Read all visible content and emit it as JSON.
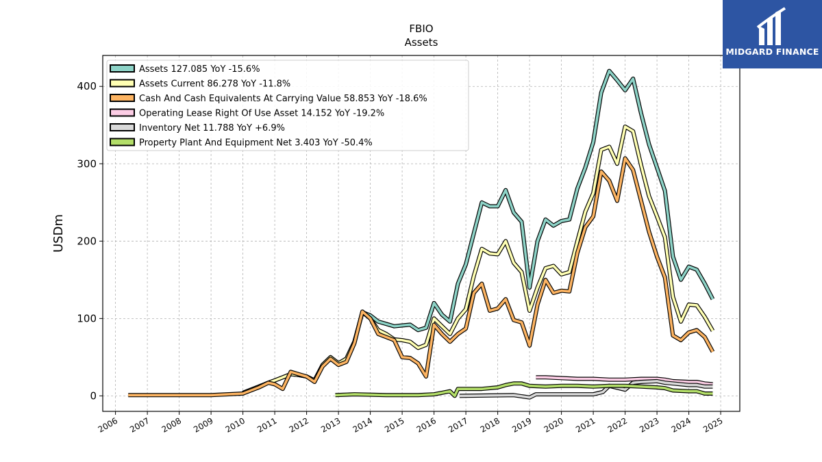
{
  "chart_data": {
    "type": "line",
    "title": "FBIO",
    "subtitle": "Assets",
    "ylabel": "USDm",
    "xlabel": "",
    "ylim": [
      -20,
      440
    ],
    "xlim": [
      2005.6,
      2025.6
    ],
    "yticks": [
      0,
      100,
      200,
      300,
      400
    ],
    "xticks": [
      "2006",
      "2007",
      "2008",
      "2009",
      "2010",
      "2011",
      "2012",
      "2013",
      "2014",
      "2015",
      "2016",
      "2017",
      "2018",
      "2019",
      "2020",
      "2021",
      "2022",
      "2023",
      "2024",
      "2025"
    ],
    "grid": true,
    "legend_position": "top-left",
    "series": [
      {
        "name": "Assets  127.085 YoY -15.6%",
        "color": "#8dd3c7",
        "points": [
          [
            2010.0,
            4
          ],
          [
            2010.5,
            12
          ],
          [
            2010.8,
            17
          ],
          [
            2011.0,
            20
          ],
          [
            2011.25,
            24
          ],
          [
            2011.5,
            28
          ],
          [
            2011.75,
            27
          ],
          [
            2012.0,
            25
          ],
          [
            2012.25,
            20
          ],
          [
            2012.5,
            40
          ],
          [
            2012.75,
            50
          ],
          [
            2013.0,
            42
          ],
          [
            2013.25,
            48
          ],
          [
            2013.5,
            70
          ],
          [
            2013.75,
            108
          ],
          [
            2014.0,
            104
          ],
          [
            2014.25,
            96
          ],
          [
            2014.5,
            93
          ],
          [
            2014.75,
            90
          ],
          [
            2015.0,
            91
          ],
          [
            2015.25,
            92
          ],
          [
            2015.5,
            85
          ],
          [
            2015.75,
            88
          ],
          [
            2016.0,
            120
          ],
          [
            2016.25,
            105
          ],
          [
            2016.5,
            96
          ],
          [
            2016.75,
            145
          ],
          [
            2017.0,
            170
          ],
          [
            2017.25,
            210
          ],
          [
            2017.5,
            250
          ],
          [
            2017.75,
            245
          ],
          [
            2018.0,
            245
          ],
          [
            2018.25,
            266
          ],
          [
            2018.5,
            237
          ],
          [
            2018.75,
            225
          ],
          [
            2019.0,
            140
          ],
          [
            2019.25,
            200
          ],
          [
            2019.5,
            228
          ],
          [
            2019.75,
            220
          ],
          [
            2020.0,
            226
          ],
          [
            2020.25,
            228
          ],
          [
            2020.5,
            268
          ],
          [
            2020.75,
            295
          ],
          [
            2021.0,
            328
          ],
          [
            2021.25,
            392
          ],
          [
            2021.5,
            420
          ],
          [
            2021.75,
            408
          ],
          [
            2022.0,
            395
          ],
          [
            2022.25,
            410
          ],
          [
            2022.5,
            365
          ],
          [
            2022.75,
            325
          ],
          [
            2023.0,
            295
          ],
          [
            2023.25,
            265
          ],
          [
            2023.5,
            180
          ],
          [
            2023.75,
            150
          ],
          [
            2024.0,
            167
          ],
          [
            2024.25,
            163
          ],
          [
            2024.5,
            145
          ],
          [
            2024.75,
            125
          ]
        ]
      },
      {
        "name": "Assets Current  86.278 YoY -11.8%",
        "color": "#ffffb3",
        "points": [
          [
            2010.0,
            4
          ],
          [
            2010.5,
            12
          ],
          [
            2010.8,
            17
          ],
          [
            2011.0,
            20
          ],
          [
            2011.25,
            24
          ],
          [
            2011.5,
            28
          ],
          [
            2011.75,
            27
          ],
          [
            2012.0,
            25
          ],
          [
            2012.25,
            20
          ],
          [
            2012.5,
            40
          ],
          [
            2012.75,
            50
          ],
          [
            2013.0,
            42
          ],
          [
            2013.25,
            48
          ],
          [
            2013.5,
            70
          ],
          [
            2013.75,
            108
          ],
          [
            2014.0,
            100
          ],
          [
            2014.25,
            85
          ],
          [
            2014.5,
            80
          ],
          [
            2014.75,
            73
          ],
          [
            2015.0,
            72
          ],
          [
            2015.25,
            70
          ],
          [
            2015.5,
            62
          ],
          [
            2015.75,
            66
          ],
          [
            2016.0,
            100
          ],
          [
            2016.25,
            90
          ],
          [
            2016.5,
            80
          ],
          [
            2016.75,
            100
          ],
          [
            2017.0,
            112
          ],
          [
            2017.25,
            155
          ],
          [
            2017.5,
            190
          ],
          [
            2017.75,
            184
          ],
          [
            2018.0,
            183
          ],
          [
            2018.25,
            200
          ],
          [
            2018.5,
            172
          ],
          [
            2018.75,
            160
          ],
          [
            2019.0,
            110
          ],
          [
            2019.25,
            140
          ],
          [
            2019.5,
            165
          ],
          [
            2019.75,
            168
          ],
          [
            2020.0,
            157
          ],
          [
            2020.25,
            160
          ],
          [
            2020.5,
            200
          ],
          [
            2020.75,
            238
          ],
          [
            2021.0,
            262
          ],
          [
            2021.25,
            318
          ],
          [
            2021.5,
            322
          ],
          [
            2021.75,
            300
          ],
          [
            2022.0,
            348
          ],
          [
            2022.25,
            342
          ],
          [
            2022.5,
            298
          ],
          [
            2022.75,
            258
          ],
          [
            2023.0,
            232
          ],
          [
            2023.25,
            205
          ],
          [
            2023.5,
            128
          ],
          [
            2023.75,
            96
          ],
          [
            2024.0,
            118
          ],
          [
            2024.25,
            117
          ],
          [
            2024.5,
            102
          ],
          [
            2024.75,
            84
          ]
        ]
      },
      {
        "name": "Cash And Cash Equivalents At Carrying Value  58.853 YoY -18.6%",
        "color": "#fdb462",
        "points": [
          [
            2006.4,
            1
          ],
          [
            2009.0,
            1
          ],
          [
            2010.0,
            3
          ],
          [
            2010.5,
            11
          ],
          [
            2010.8,
            17
          ],
          [
            2011.0,
            15
          ],
          [
            2011.25,
            9
          ],
          [
            2011.5,
            31
          ],
          [
            2011.75,
            28
          ],
          [
            2012.0,
            25
          ],
          [
            2012.25,
            18
          ],
          [
            2012.5,
            38
          ],
          [
            2012.75,
            48
          ],
          [
            2013.0,
            40
          ],
          [
            2013.25,
            44
          ],
          [
            2013.5,
            68
          ],
          [
            2013.75,
            109
          ],
          [
            2014.0,
            100
          ],
          [
            2014.25,
            80
          ],
          [
            2014.5,
            76
          ],
          [
            2014.75,
            72
          ],
          [
            2015.0,
            50
          ],
          [
            2015.25,
            49
          ],
          [
            2015.5,
            42
          ],
          [
            2015.75,
            25
          ],
          [
            2016.0,
            92
          ],
          [
            2016.25,
            80
          ],
          [
            2016.5,
            70
          ],
          [
            2016.75,
            80
          ],
          [
            2017.0,
            87
          ],
          [
            2017.25,
            133
          ],
          [
            2017.5,
            145
          ],
          [
            2017.75,
            110
          ],
          [
            2018.0,
            113
          ],
          [
            2018.25,
            125
          ],
          [
            2018.5,
            98
          ],
          [
            2018.75,
            95
          ],
          [
            2019.0,
            65
          ],
          [
            2019.25,
            118
          ],
          [
            2019.5,
            150
          ],
          [
            2019.75,
            133
          ],
          [
            2020.0,
            136
          ],
          [
            2020.25,
            135
          ],
          [
            2020.5,
            185
          ],
          [
            2020.75,
            218
          ],
          [
            2021.0,
            232
          ],
          [
            2021.25,
            290
          ],
          [
            2021.5,
            278
          ],
          [
            2021.75,
            252
          ],
          [
            2022.0,
            307
          ],
          [
            2022.25,
            292
          ],
          [
            2022.5,
            252
          ],
          [
            2022.75,
            212
          ],
          [
            2023.0,
            180
          ],
          [
            2023.25,
            153
          ],
          [
            2023.5,
            78
          ],
          [
            2023.75,
            72
          ],
          [
            2024.0,
            82
          ],
          [
            2024.25,
            85
          ],
          [
            2024.5,
            76
          ],
          [
            2024.75,
            57
          ]
        ]
      },
      {
        "name": "Operating Lease Right Of Use Asset  14.152 YoY -19.2%",
        "color": "#fccde5",
        "points": [
          [
            2019.2,
            24
          ],
          [
            2019.5,
            24
          ],
          [
            2020.0,
            23
          ],
          [
            2020.5,
            22
          ],
          [
            2021.0,
            22
          ],
          [
            2021.5,
            21
          ],
          [
            2022.0,
            21
          ],
          [
            2022.5,
            22
          ],
          [
            2022.75,
            22
          ],
          [
            2023.0,
            22
          ],
          [
            2023.25,
            21
          ],
          [
            2023.5,
            19
          ],
          [
            2024.0,
            18
          ],
          [
            2024.25,
            18
          ],
          [
            2024.5,
            16
          ],
          [
            2024.75,
            15
          ]
        ]
      },
      {
        "name": "Inventory Net  11.788 YoY +6.9%",
        "color": "#d9d9d9",
        "points": [
          [
            2016.8,
            0
          ],
          [
            2018.5,
            1
          ],
          [
            2019.0,
            -2
          ],
          [
            2019.2,
            2
          ],
          [
            2020.0,
            2
          ],
          [
            2021.0,
            2
          ],
          [
            2021.3,
            5
          ],
          [
            2021.5,
            13
          ],
          [
            2022.0,
            8
          ],
          [
            2022.25,
            17
          ],
          [
            2022.5,
            18
          ],
          [
            2023.0,
            19
          ],
          [
            2023.25,
            17
          ],
          [
            2023.5,
            16
          ],
          [
            2024.0,
            14
          ],
          [
            2024.25,
            14
          ],
          [
            2024.5,
            12
          ],
          [
            2024.75,
            12
          ]
        ]
      },
      {
        "name": "Property Plant And Equipment Net  3.403 YoY -50.4%",
        "color": "#b3de69",
        "points": [
          [
            2012.9,
            1
          ],
          [
            2013.5,
            2
          ],
          [
            2014.5,
            1
          ],
          [
            2015.0,
            1
          ],
          [
            2015.5,
            1
          ],
          [
            2016.0,
            2
          ],
          [
            2016.25,
            4
          ],
          [
            2016.5,
            6
          ],
          [
            2016.65,
            0
          ],
          [
            2016.75,
            9
          ],
          [
            2017.0,
            9
          ],
          [
            2017.5,
            9
          ],
          [
            2018.0,
            11
          ],
          [
            2018.25,
            14
          ],
          [
            2018.5,
            16
          ],
          [
            2018.75,
            16
          ],
          [
            2019.0,
            13
          ],
          [
            2019.5,
            12
          ],
          [
            2020.0,
            13
          ],
          [
            2020.5,
            13
          ],
          [
            2021.0,
            12
          ],
          [
            2021.5,
            13
          ],
          [
            2022.0,
            13
          ],
          [
            2022.5,
            12
          ],
          [
            2023.0,
            11
          ],
          [
            2023.25,
            10
          ],
          [
            2023.5,
            7
          ],
          [
            2024.0,
            6
          ],
          [
            2024.25,
            6
          ],
          [
            2024.5,
            3
          ],
          [
            2024.75,
            3
          ]
        ]
      }
    ]
  },
  "logo": {
    "text": "MIDGARD FINANCE"
  }
}
